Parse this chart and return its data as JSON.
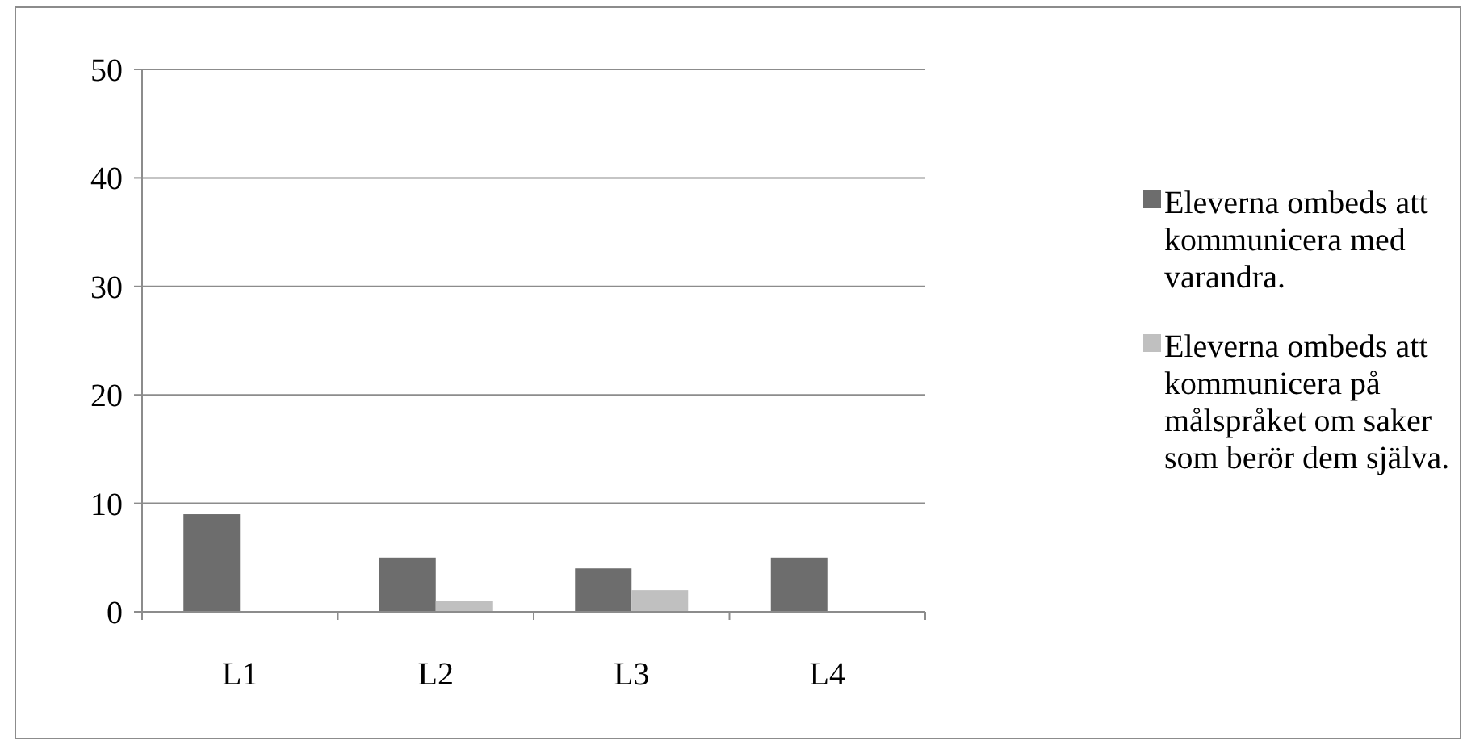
{
  "chart_data": {
    "type": "bar",
    "categories": [
      "L1",
      "L2",
      "L3",
      "L4"
    ],
    "series": [
      {
        "name": "Eleverna ombeds att kommunicera med varandra.",
        "color": "#6d6d6d",
        "values": [
          9,
          5,
          4,
          5
        ]
      },
      {
        "name": "Eleverna ombeds att kommunicera på målspråket om saker som berör dem själva.",
        "color": "#c0c0c0",
        "values": [
          0,
          1,
          2,
          0
        ]
      }
    ],
    "ylim": [
      0,
      50
    ],
    "yticks": [
      0,
      10,
      20,
      30,
      40,
      50
    ],
    "grid": "y",
    "legend": "right"
  }
}
